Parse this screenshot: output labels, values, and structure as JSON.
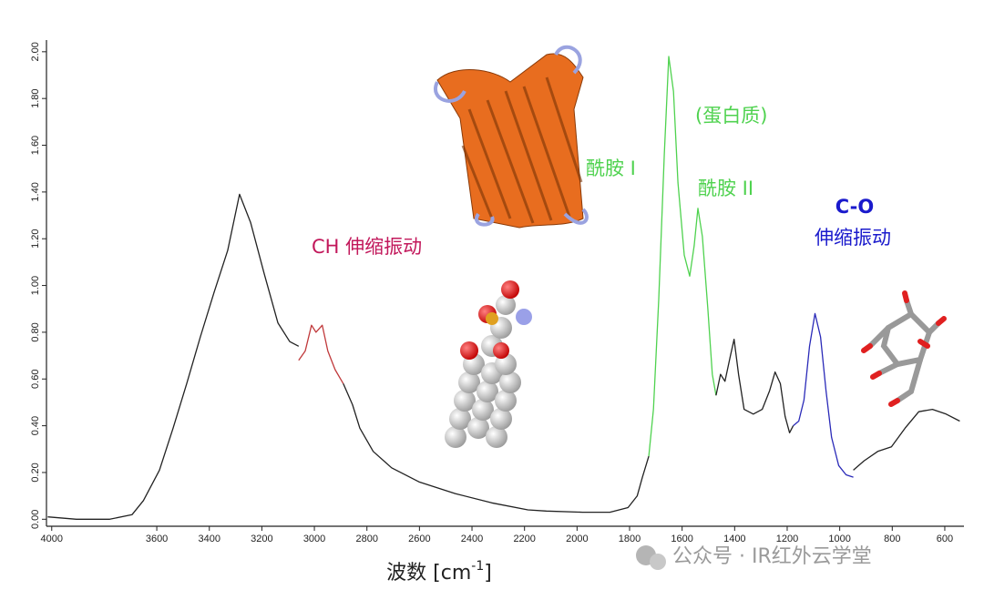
{
  "chart_data": {
    "type": "line",
    "xlabel": {
      "text": "波数 [cm",
      "sup": "-1",
      "end": "]"
    },
    "annotations": [
      "CH 伸缩振动",
      "(蛋白质)",
      "酰胺 I",
      "酰胺 II",
      "C-O",
      "伸缩振动"
    ],
    "xlim": [
      4020,
      527
    ],
    "ylim": [
      -0.03,
      2.05
    ],
    "xticks": [
      4000,
      3600,
      3400,
      3200,
      3000,
      2800,
      2600,
      2400,
      2200,
      2000,
      1800,
      1600,
      1400,
      1200,
      1000,
      800,
      600
    ],
    "yticks": [
      {
        "value": 0,
        "label": "0.00"
      },
      {
        "value": 0.2,
        "label": "0.20"
      },
      {
        "value": 0.4,
        "label": "0.40"
      },
      {
        "value": 0.6,
        "label": "0.60"
      },
      {
        "value": 0.8,
        "label": "0.80"
      },
      {
        "value": 1.0,
        "label": "1.00"
      },
      {
        "value": 1.2,
        "label": "1.20"
      },
      {
        "value": 1.4,
        "label": "1.40"
      },
      {
        "value": 1.6,
        "label": "1.60"
      },
      {
        "value": 1.8,
        "label": "1.80"
      },
      {
        "value": 2.0,
        "label": "2.00"
      }
    ],
    "series": [
      {
        "color": "#222222",
        "x": [
          4015,
          3906,
          3779,
          3694,
          3651,
          3590,
          3538,
          3486,
          3434,
          3382,
          3330,
          3285,
          3243,
          3191,
          3139,
          3094,
          3060
        ],
        "values": [
          0.01,
          0.0,
          0.0,
          0.02,
          0.08,
          0.21,
          0.39,
          0.58,
          0.78,
          0.97,
          1.15,
          1.39,
          1.27,
          1.05,
          0.84,
          0.76,
          0.74
        ]
      },
      {
        "color": "#c0393b",
        "x": [
          3060,
          3035,
          3011,
          2994,
          2970,
          2949,
          2921,
          2890
        ],
        "values": [
          0.68,
          0.72,
          0.83,
          0.8,
          0.83,
          0.72,
          0.64,
          0.58
        ]
      },
      {
        "color": "#222222",
        "x": [
          2890,
          2855,
          2827,
          2776,
          2706,
          2602,
          2464,
          2325,
          2187,
          2117,
          1979,
          1875,
          1806,
          1771,
          1751,
          1727
        ],
        "values": [
          0.58,
          0.49,
          0.39,
          0.29,
          0.22,
          0.16,
          0.11,
          0.07,
          0.04,
          0.035,
          0.03,
          0.03,
          0.05,
          0.1,
          0.18,
          0.27
        ]
      },
      {
        "color": "#4fd24f",
        "x": [
          1727,
          1709,
          1689,
          1668,
          1651,
          1633,
          1616,
          1592,
          1571,
          1554,
          1540,
          1523,
          1502,
          1485,
          1471
        ],
        "values": [
          0.27,
          0.47,
          0.94,
          1.56,
          1.98,
          1.83,
          1.44,
          1.13,
          1.04,
          1.17,
          1.33,
          1.21,
          0.9,
          0.62,
          0.53
        ]
      },
      {
        "color": "#222222",
        "x": [
          1471,
          1454,
          1437,
          1416,
          1402,
          1385,
          1364,
          1329,
          1295,
          1267,
          1246,
          1226,
          1208,
          1191,
          1177
        ],
        "values": [
          0.53,
          0.62,
          0.59,
          0.7,
          0.77,
          0.62,
          0.47,
          0.45,
          0.47,
          0.55,
          0.63,
          0.58,
          0.44,
          0.37,
          0.4
        ]
      },
      {
        "color": "#2a2ab8",
        "x": [
          1177,
          1156,
          1136,
          1115,
          1094,
          1073,
          1052,
          1031,
          1004,
          976,
          948
        ],
        "values": [
          0.4,
          0.42,
          0.51,
          0.74,
          0.88,
          0.78,
          0.55,
          0.35,
          0.23,
          0.19,
          0.18
        ]
      },
      {
        "color": "#222222",
        "x": [
          948,
          907,
          855,
          803,
          751,
          699,
          647,
          595,
          543
        ],
        "values": [
          0.21,
          0.25,
          0.29,
          0.31,
          0.39,
          0.46,
          0.47,
          0.45,
          0.42
        ]
      }
    ]
  },
  "watermark": "公众号 · IR红外云学堂"
}
